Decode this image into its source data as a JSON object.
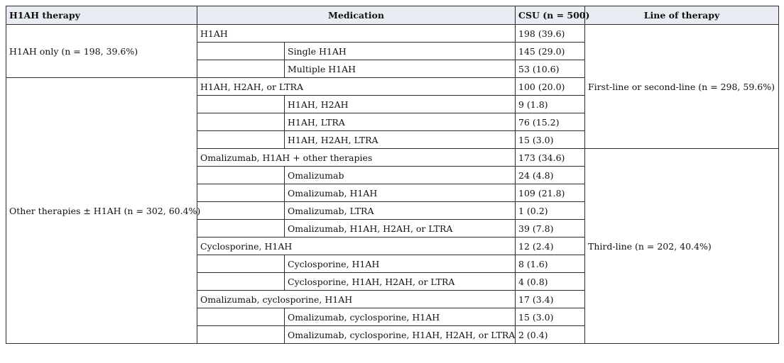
{
  "headers": {
    "therapy": "H1AH therapy",
    "medication": "Medication",
    "csu": "CSU (n = 500)",
    "line": "Line of therapy"
  },
  "groups": {
    "g1": "H1AH only (n = 198, 39.6%)",
    "g2": "Other therapies ± H1AH (n = 302, 60.4%)"
  },
  "lines": {
    "l1": "First-line or second-line (n = 298, 59.6%)",
    "l2": "Third-line (n = 202, 40.4%)"
  },
  "rows": [
    {
      "med": "H1AH",
      "csu": "198 (39.6)"
    },
    {
      "sub": "Single H1AH",
      "csu": "145 (29.0)"
    },
    {
      "sub": "Multiple H1AH",
      "csu": "53 (10.6)"
    },
    {
      "med": "H1AH, H2AH, or LTRA",
      "csu": "100 (20.0)"
    },
    {
      "sub": "H1AH, H2AH",
      "csu": "9 (1.8)"
    },
    {
      "sub": "H1AH, LTRA",
      "csu": "76 (15.2)"
    },
    {
      "sub": "H1AH, H2AH, LTRA",
      "csu": "15 (3.0)"
    },
    {
      "med": "Omalizumab, H1AH + other therapies",
      "csu": "173 (34.6)"
    },
    {
      "sub": "Omalizumab",
      "csu": "24 (4.8)"
    },
    {
      "sub": "Omalizumab, H1AH",
      "csu": "109 (21.8)"
    },
    {
      "sub": "Omalizumab, LTRA",
      "csu": "1 (0.2)"
    },
    {
      "sub": "Omalizumab, H1AH, H2AH, or LTRA",
      "csu": "39 (7.8)"
    },
    {
      "med": "Cyclosporine, H1AH",
      "csu": "12 (2.4)"
    },
    {
      "sub": "Cyclosporine, H1AH",
      "csu": "8 (1.6)"
    },
    {
      "sub": "Cyclosporine, H1AH, H2AH, or LTRA",
      "csu": "4 (0.8)"
    },
    {
      "med": "Omalizumab, cyclosporine, H1AH",
      "csu": "17 (3.4)"
    },
    {
      "sub": "Omalizumab, cyclosporine, H1AH",
      "csu": "15 (3.0)"
    },
    {
      "sub": "Omalizumab, cyclosporine, H1AH, H2AH, or LTRA",
      "csu": "2 (0.4)"
    }
  ]
}
